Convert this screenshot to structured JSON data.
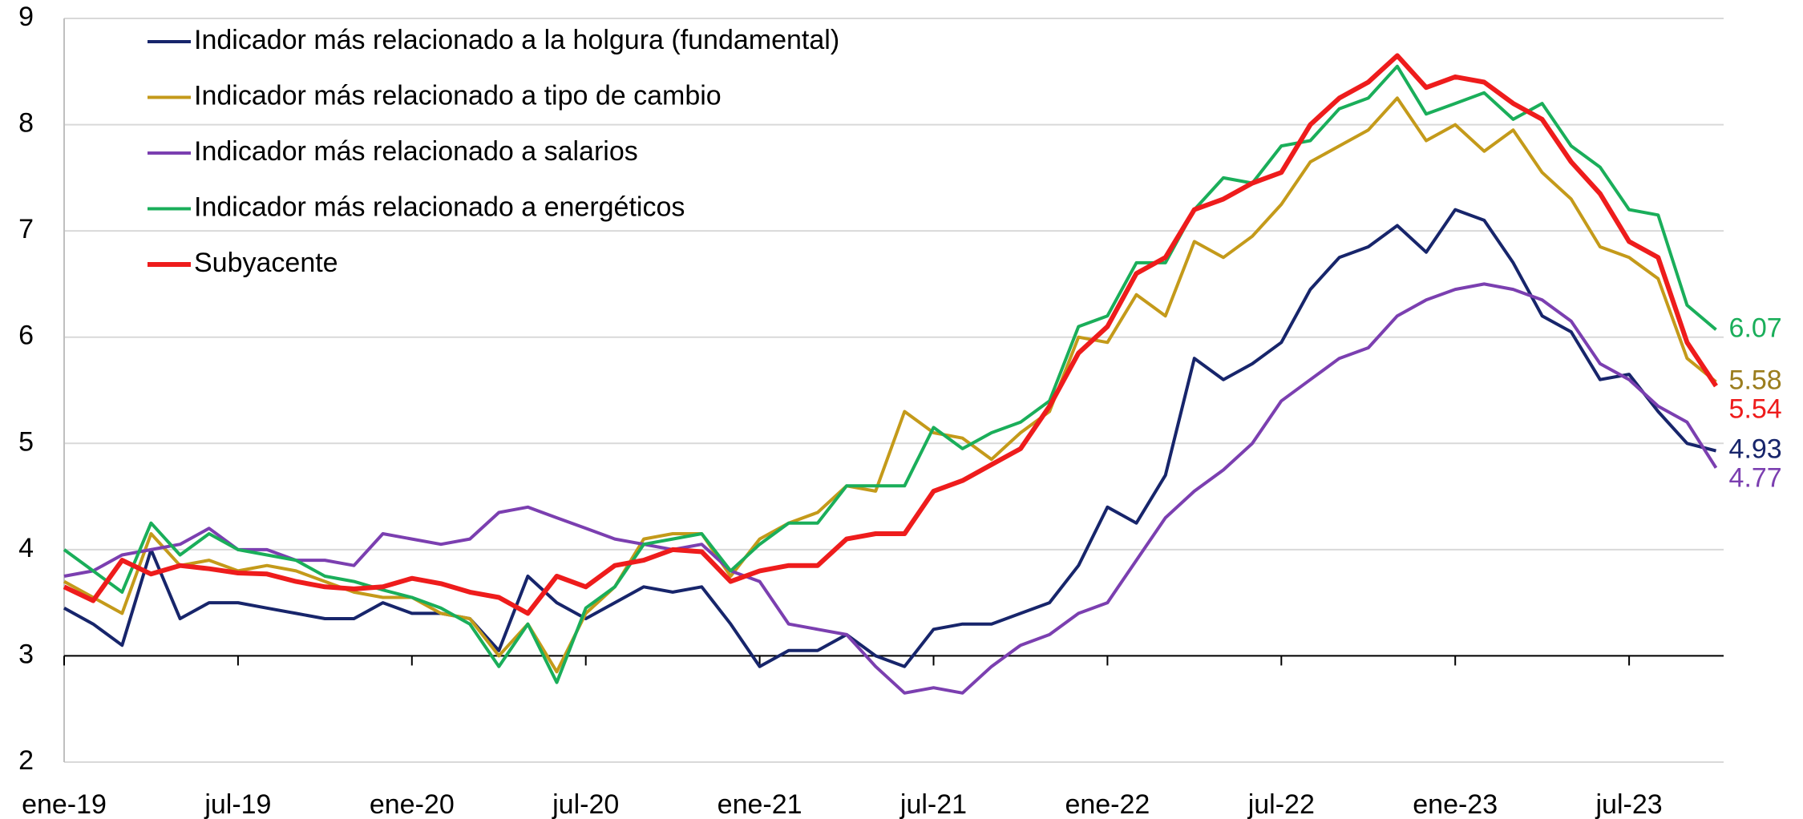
{
  "chart_data": {
    "type": "line",
    "categories": [
      "ene-19",
      null,
      null,
      null,
      null,
      null,
      "jul-19",
      null,
      null,
      null,
      null,
      null,
      "ene-20",
      null,
      null,
      null,
      null,
      null,
      "jul-20",
      null,
      null,
      null,
      null,
      null,
      "ene-21",
      null,
      null,
      null,
      null,
      null,
      "jul-21",
      null,
      null,
      null,
      null,
      null,
      "ene-22",
      null,
      null,
      null,
      null,
      null,
      "jul-22",
      null,
      null,
      null,
      null,
      null,
      "ene-23",
      null,
      null,
      null,
      null,
      null,
      "jul-23",
      null,
      null,
      null
    ],
    "series": [
      {
        "name": "Indicador más relacionado a la holgura (fundamental)",
        "color": "#17256b",
        "label_color": "#17256b",
        "values": [
          3.45,
          3.3,
          3.1,
          4.0,
          3.35,
          3.5,
          3.5,
          3.45,
          3.4,
          3.35,
          3.35,
          3.5,
          3.4,
          3.4,
          3.35,
          3.05,
          3.75,
          3.5,
          3.35,
          3.5,
          3.65,
          3.6,
          3.65,
          3.3,
          2.9,
          3.05,
          3.05,
          3.2,
          3.0,
          2.9,
          3.25,
          3.3,
          3.3,
          3.4,
          3.5,
          3.85,
          4.4,
          4.25,
          4.7,
          5.8,
          5.6,
          5.75,
          5.95,
          6.45,
          6.75,
          6.85,
          7.05,
          6.8,
          7.2,
          7.1,
          6.7,
          6.2,
          6.05,
          5.6,
          5.65,
          5.3,
          5.0,
          4.93
        ]
      },
      {
        "name": "Indicador más relacionado a tipo de cambio",
        "color": "#c49a1a",
        "label_color": "#9b7d1e",
        "values": [
          3.7,
          3.55,
          3.4,
          4.15,
          3.85,
          3.9,
          3.8,
          3.85,
          3.8,
          3.7,
          3.6,
          3.55,
          3.55,
          3.4,
          3.35,
          3.0,
          3.3,
          2.85,
          3.4,
          3.65,
          4.1,
          4.15,
          4.15,
          3.75,
          4.1,
          4.25,
          4.35,
          4.6,
          4.55,
          5.3,
          5.1,
          5.05,
          4.85,
          5.1,
          5.3,
          6.0,
          5.95,
          6.4,
          6.2,
          6.9,
          6.75,
          6.95,
          7.25,
          7.65,
          7.8,
          7.95,
          8.25,
          7.85,
          8.0,
          7.75,
          7.95,
          7.55,
          7.3,
          6.85,
          6.75,
          6.55,
          5.8,
          5.58
        ]
      },
      {
        "name": "Indicador más relacionado a salarios",
        "color": "#7b3fb0",
        "label_color": "#7b3fb0",
        "values": [
          3.75,
          3.8,
          3.95,
          4.0,
          4.05,
          4.2,
          4.0,
          4.0,
          3.9,
          3.9,
          3.85,
          4.15,
          4.1,
          4.05,
          4.1,
          4.35,
          4.4,
          4.3,
          4.2,
          4.1,
          4.05,
          4.0,
          4.05,
          3.8,
          3.7,
          3.3,
          3.25,
          3.2,
          2.9,
          2.65,
          2.7,
          2.65,
          2.9,
          3.1,
          3.2,
          3.4,
          3.5,
          3.9,
          4.3,
          4.55,
          4.75,
          5.0,
          5.4,
          5.6,
          5.8,
          5.9,
          6.2,
          6.35,
          6.45,
          6.5,
          6.45,
          6.35,
          6.15,
          5.75,
          5.6,
          5.35,
          5.2,
          4.77
        ]
      },
      {
        "name": "Indicador más relacionado a energéticos",
        "color": "#1aae5a",
        "label_color": "#1aae5a",
        "values": [
          4.0,
          3.8,
          3.6,
          4.25,
          3.95,
          4.15,
          4.0,
          3.95,
          3.9,
          3.75,
          3.7,
          3.62,
          3.55,
          3.45,
          3.3,
          2.9,
          3.3,
          2.75,
          3.45,
          3.65,
          4.05,
          4.1,
          4.15,
          3.8,
          4.05,
          4.25,
          4.25,
          4.6,
          4.6,
          4.6,
          5.15,
          4.95,
          5.1,
          5.2,
          5.4,
          6.1,
          6.2,
          6.7,
          6.7,
          7.2,
          7.5,
          7.45,
          7.8,
          7.85,
          8.15,
          8.25,
          8.55,
          8.1,
          8.2,
          8.3,
          8.05,
          8.2,
          7.8,
          7.6,
          7.2,
          7.15,
          6.3,
          6.07
        ]
      },
      {
        "name": "Subyacente",
        "color": "#ee1c1c",
        "label_color": "#ee1c1c",
        "values": [
          3.65,
          3.52,
          3.9,
          3.77,
          3.85,
          3.82,
          3.78,
          3.77,
          3.7,
          3.65,
          3.63,
          3.65,
          3.73,
          3.68,
          3.6,
          3.55,
          3.4,
          3.75,
          3.65,
          3.85,
          3.9,
          4.0,
          3.98,
          3.7,
          3.8,
          3.85,
          3.85,
          4.1,
          4.15,
          4.15,
          4.55,
          4.65,
          4.8,
          4.95,
          5.35,
          5.85,
          6.1,
          6.6,
          6.75,
          7.2,
          7.3,
          7.45,
          7.55,
          8.0,
          8.25,
          8.4,
          8.65,
          8.35,
          8.45,
          8.4,
          8.2,
          8.05,
          7.65,
          7.35,
          6.9,
          6.75,
          5.95,
          5.54
        ]
      }
    ],
    "ylim": [
      2,
      9
    ],
    "yticks": [
      2,
      3,
      4,
      5,
      6,
      7,
      8,
      9
    ],
    "grid": true,
    "xaxis_crosses": 3,
    "legend": "top-left",
    "end_labels": true
  }
}
